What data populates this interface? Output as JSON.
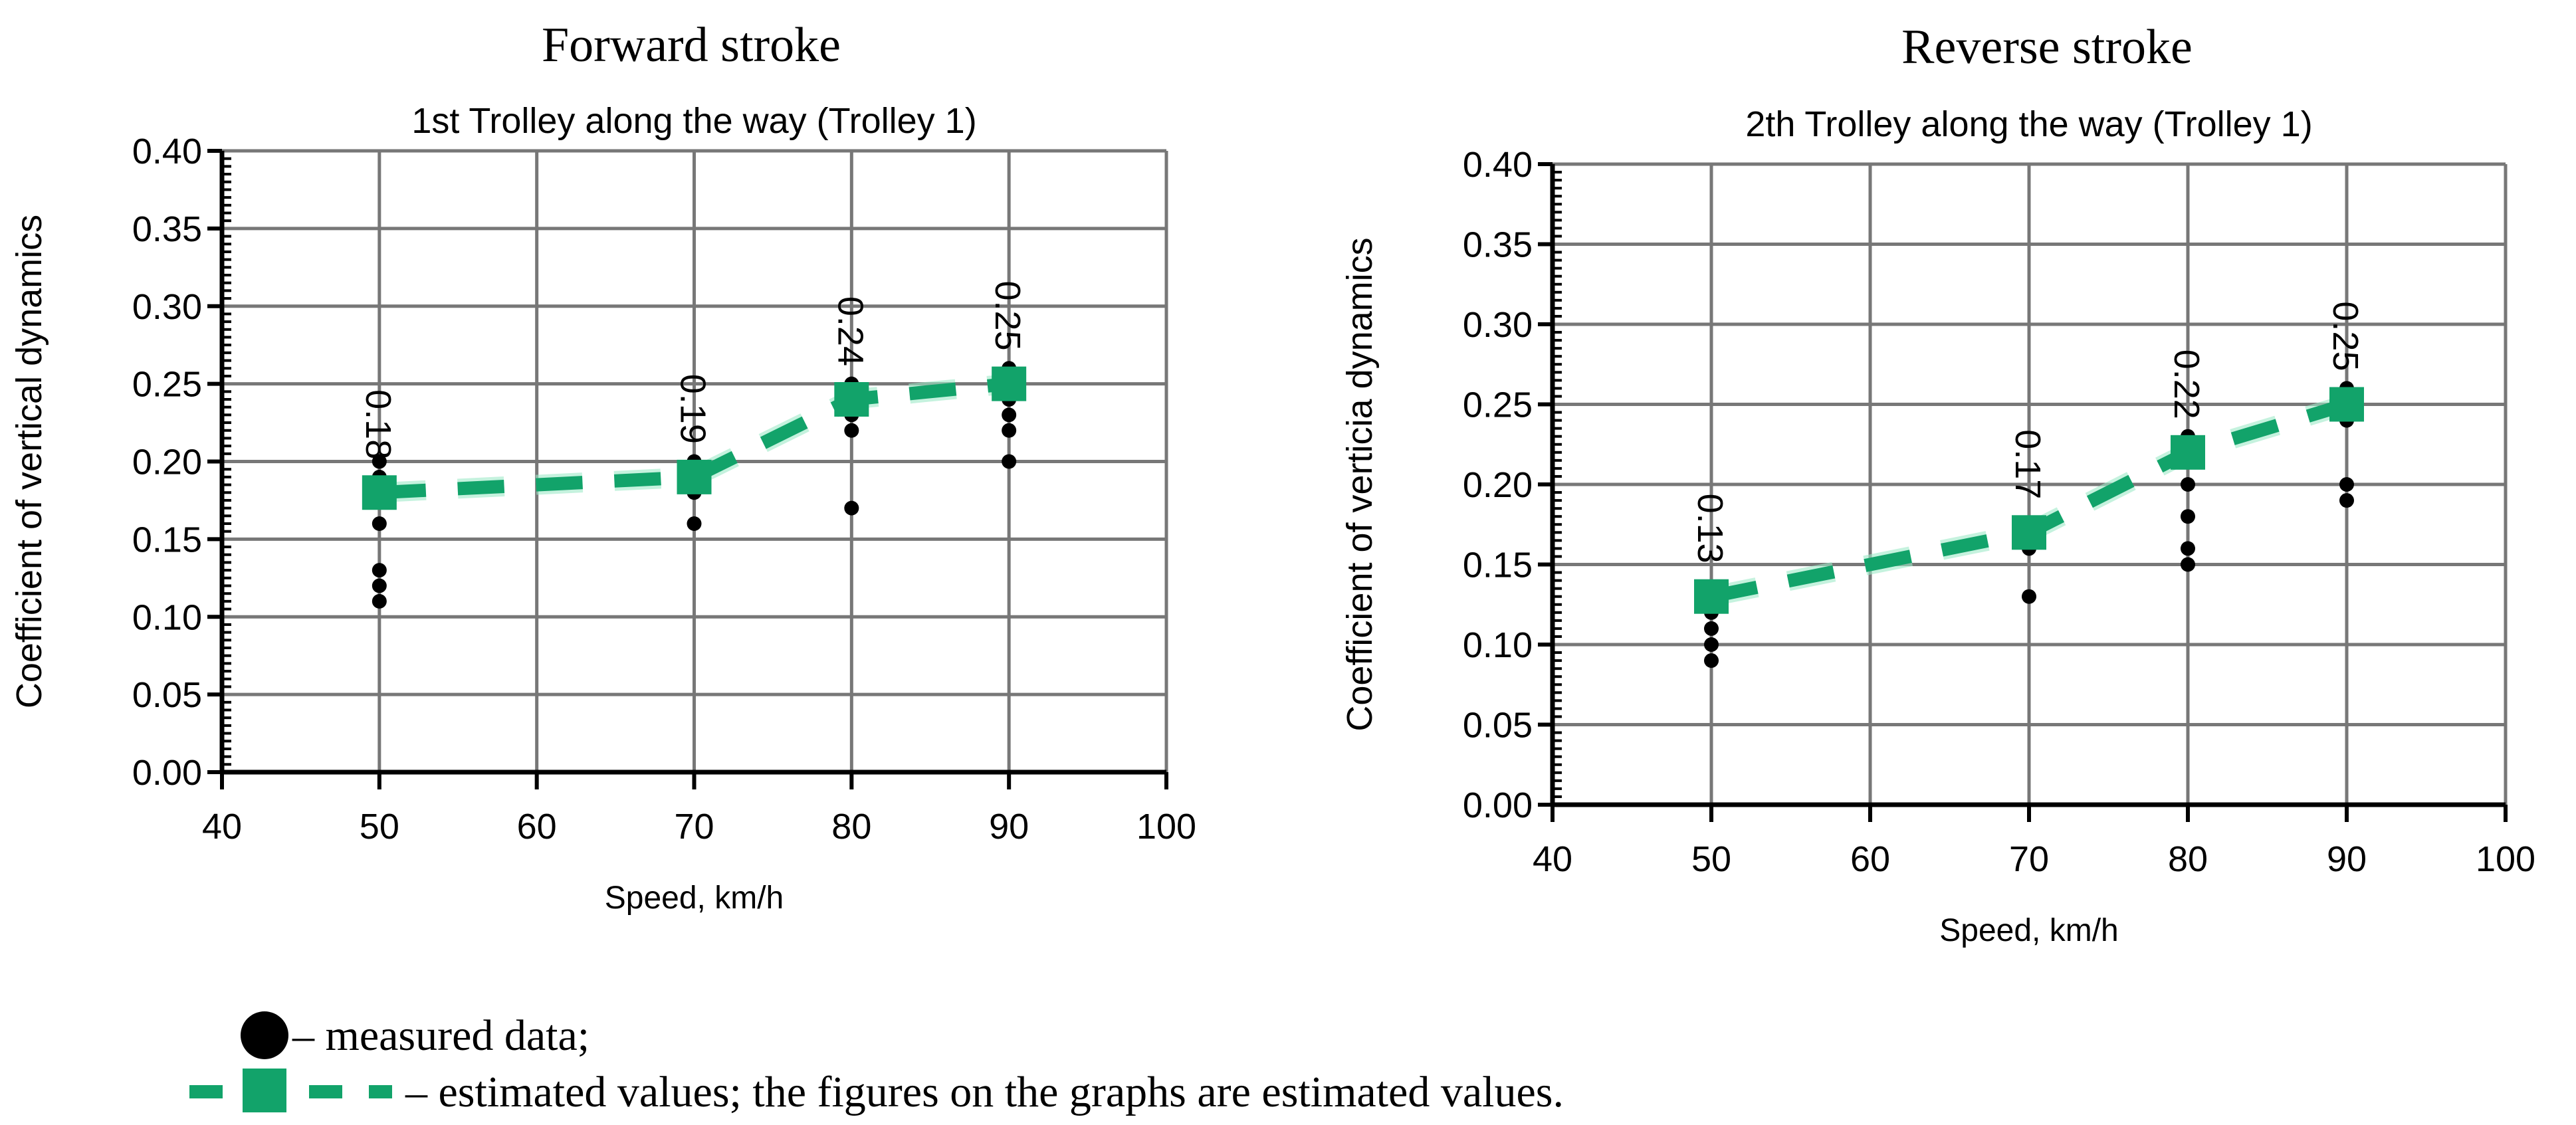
{
  "colors": {
    "estimated": "#12a36a",
    "measured": "#000000",
    "grid": "#777777"
  },
  "legend": {
    "measured_label": "– measured data;",
    "estimated_label": "– estimated values; the figures on the graphs are estimated values."
  },
  "chart_data": [
    {
      "type": "scatter",
      "heading": "Forward stroke",
      "title": "1st Trolley along the way (Trolley 1)",
      "xlabel": "Speed, km/h",
      "ylabel": "Coefficient of vertical dynamics",
      "xlim": [
        40,
        100
      ],
      "ylim": [
        0,
        0.4
      ],
      "xticks": [
        "40",
        "50",
        "60",
        "70",
        "80",
        "90",
        "100"
      ],
      "yticks": [
        "0.00",
        "0.05",
        "0.10",
        "0.15",
        "0.20",
        "0.25",
        "0.30",
        "0.35",
        "0.40"
      ],
      "grid": true,
      "measured": [
        {
          "x": 50,
          "y": [
            0.2,
            0.19,
            0.18,
            0.16,
            0.13,
            0.12,
            0.11
          ]
        },
        {
          "x": 70,
          "y": [
            0.2,
            0.19,
            0.18,
            0.16
          ]
        },
        {
          "x": 80,
          "y": [
            0.25,
            0.24,
            0.23,
            0.22,
            0.17
          ]
        },
        {
          "x": 90,
          "y": [
            0.26,
            0.25,
            0.24,
            0.23,
            0.22,
            0.2
          ]
        }
      ],
      "estimated": {
        "x": [
          50,
          70,
          80,
          90
        ],
        "y": [
          0.18,
          0.19,
          0.24,
          0.25
        ],
        "labels": [
          "0.18",
          "0.19",
          "0.24",
          "0.25"
        ]
      }
    },
    {
      "type": "scatter",
      "heading": "Reverse stroke",
      "title": "2th Trolley along the way (Trolley 1)",
      "xlabel": "Speed, km/h",
      "ylabel": "Coefficient of verticia dynamics",
      "xlim": [
        40,
        100
      ],
      "ylim": [
        0,
        0.4
      ],
      "xticks": [
        "40",
        "50",
        "60",
        "70",
        "80",
        "90",
        "100"
      ],
      "yticks": [
        "0.00",
        "0.05",
        "0.10",
        "0.15",
        "0.20",
        "0.25",
        "0.30",
        "0.35",
        "0.40"
      ],
      "grid": true,
      "measured": [
        {
          "x": 50,
          "y": [
            0.13,
            0.12,
            0.11,
            0.1,
            0.09
          ]
        },
        {
          "x": 70,
          "y": [
            0.17,
            0.16,
            0.13
          ]
        },
        {
          "x": 80,
          "y": [
            0.23,
            0.22,
            0.2,
            0.18,
            0.16,
            0.15
          ]
        },
        {
          "x": 90,
          "y": [
            0.26,
            0.25,
            0.24,
            0.2,
            0.19
          ]
        }
      ],
      "estimated": {
        "x": [
          50,
          70,
          80,
          90
        ],
        "y": [
          0.13,
          0.17,
          0.22,
          0.25
        ],
        "labels": [
          "0.13",
          "0.17",
          "0.22",
          "0.25"
        ]
      }
    }
  ]
}
